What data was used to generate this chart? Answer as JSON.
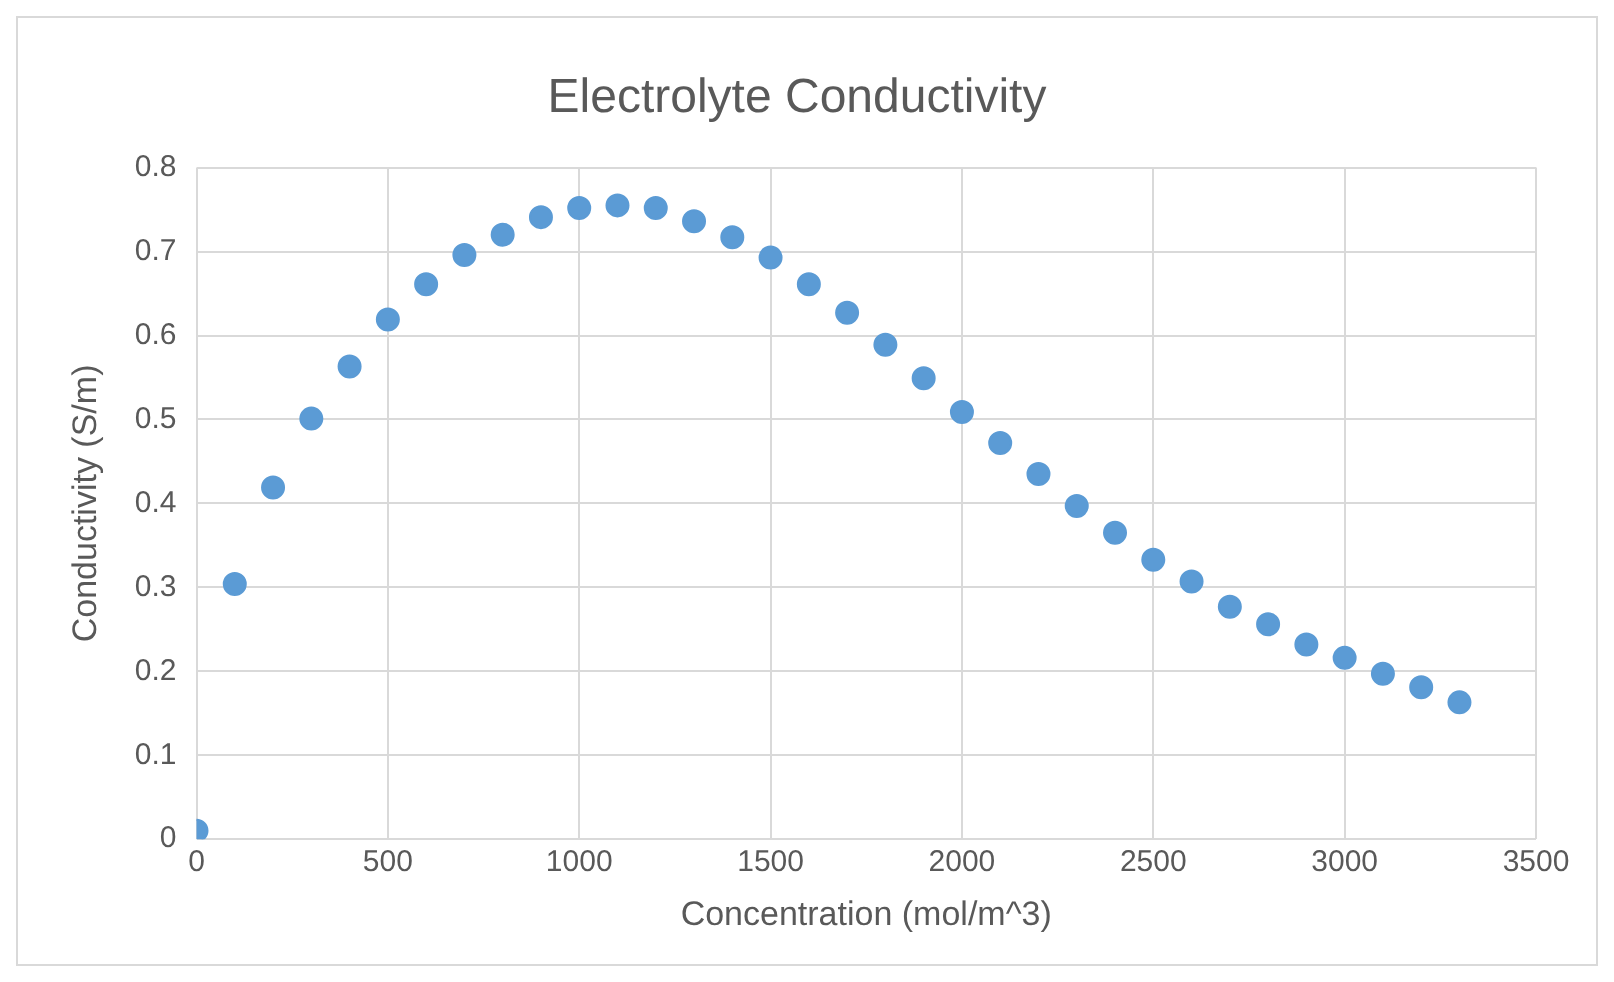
{
  "chart_data": {
    "type": "scatter",
    "title": "Electrolyte Conductivity",
    "xlabel": "Concentration (mol/m^3)",
    "ylabel": "Conductivity (S/m)",
    "x": [
      0,
      100,
      200,
      300,
      400,
      500,
      600,
      700,
      800,
      900,
      1000,
      1100,
      1200,
      1300,
      1400,
      1500,
      1600,
      1700,
      1800,
      1900,
      2000,
      2100,
      2200,
      2300,
      2400,
      2500,
      2600,
      2700,
      2800,
      2900,
      3000,
      3100,
      3200,
      3300
    ],
    "series": [
      {
        "color": "#5b9bd5",
        "values": [
          0.01,
          0.304,
          0.419,
          0.501,
          0.563,
          0.619,
          0.661,
          0.696,
          0.72,
          0.741,
          0.752,
          0.755,
          0.752,
          0.736,
          0.717,
          0.693,
          0.661,
          0.627,
          0.589,
          0.549,
          0.509,
          0.472,
          0.435,
          0.397,
          0.365,
          0.333,
          0.307,
          0.277,
          0.256,
          0.232,
          0.216,
          0.197,
          0.181,
          0.163
        ]
      }
    ],
    "xlim": [
      0,
      3500
    ],
    "xticks": [
      0,
      500,
      1000,
      1500,
      2000,
      2500,
      3000,
      3500
    ],
    "ylim": [
      0,
      0.8
    ],
    "yticks": [
      0,
      0.1,
      0.2,
      0.3,
      0.4,
      0.5,
      0.6,
      0.7,
      0.8
    ],
    "grid": true,
    "legend": false,
    "marker": "circle"
  }
}
